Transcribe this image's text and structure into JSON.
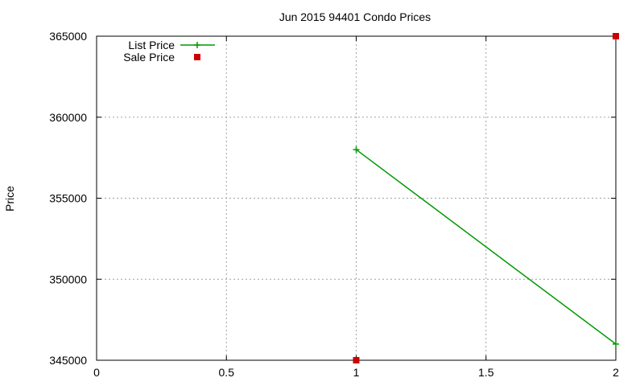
{
  "chart_data": {
    "type": "line",
    "title": "Jun 2015 94401 Condo Prices",
    "xlabel": "",
    "ylabel": "Price",
    "xlim": [
      0,
      2
    ],
    "ylim": [
      345000,
      365000
    ],
    "x_ticks": [
      0,
      0.5,
      1,
      1.5,
      2
    ],
    "x_tick_labels": [
      "0",
      "0.5",
      "1",
      "1.5",
      "2"
    ],
    "y_ticks": [
      345000,
      350000,
      355000,
      360000,
      365000
    ],
    "y_tick_labels": [
      "345000",
      "350000",
      "355000",
      "360000",
      "365000"
    ],
    "grid": true,
    "legend_position": "top-left",
    "series": [
      {
        "name": "List Price",
        "style": "linespoints",
        "marker": "plus",
        "color": "#009900",
        "points": [
          {
            "x": 1,
            "y": 358000
          },
          {
            "x": 2,
            "y": 346000
          }
        ]
      },
      {
        "name": "Sale Price",
        "style": "points",
        "marker": "square",
        "color": "#cc0000",
        "points": [
          {
            "x": 1,
            "y": 345000
          },
          {
            "x": 2,
            "y": 365000
          }
        ]
      }
    ]
  }
}
